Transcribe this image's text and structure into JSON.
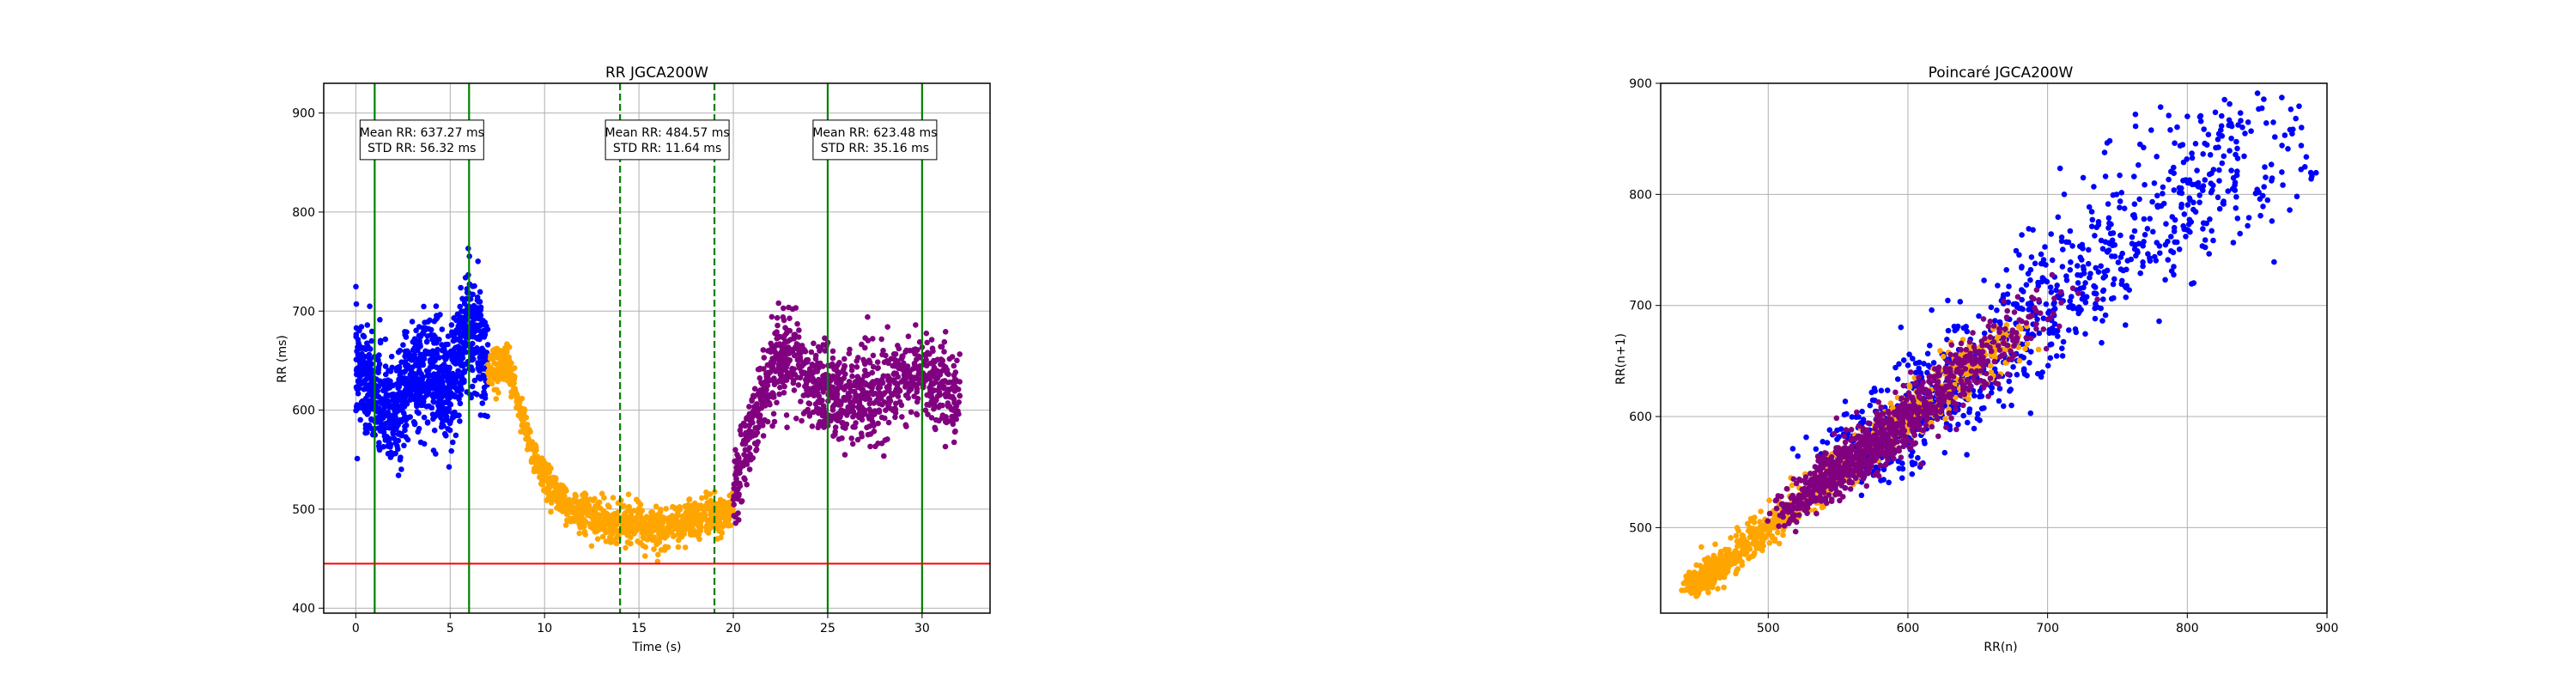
{
  "chart_data": [
    {
      "type": "scatter",
      "title": "RR JGCA200W",
      "xlabel": "Time (s)",
      "ylabel": "RR (ms)",
      "xlim": [
        -1.7,
        33.6
      ],
      "ylim": [
        395,
        930
      ],
      "xticks": [
        0,
        5,
        10,
        15,
        20,
        25,
        30
      ],
      "yticks": [
        400,
        500,
        600,
        700,
        800,
        900
      ],
      "grid": true,
      "series": [
        {
          "color": "#0000ff",
          "x_range": [
            0,
            7
          ],
          "segments": [
            [
              0,
              650
            ],
            [
              1,
              610
            ],
            [
              2,
              590
            ],
            [
              3,
              630
            ],
            [
              4,
              640
            ],
            [
              5,
              620
            ],
            [
              6,
              690
            ],
            [
              7,
              650
            ]
          ],
          "spread": 50
        },
        {
          "color": "#ffa500",
          "x_range": [
            7,
            20
          ],
          "segments": [
            [
              7,
              640
            ],
            [
              8,
              650
            ],
            [
              9,
              580
            ],
            [
              10,
              530
            ],
            [
              11,
              505
            ],
            [
              12,
              495
            ],
            [
              14,
              485
            ],
            [
              16,
              480
            ],
            [
              18,
              490
            ],
            [
              20,
              495
            ]
          ],
          "spread": 18
        },
        {
          "color": "#800080",
          "x_range": [
            20,
            32
          ],
          "segments": [
            [
              20,
              520
            ],
            [
              21,
              580
            ],
            [
              22,
              640
            ],
            [
              23,
              660
            ],
            [
              24,
              630
            ],
            [
              26,
              610
            ],
            [
              28,
              620
            ],
            [
              30,
              640
            ],
            [
              32,
              610
            ]
          ],
          "spread": 40
        }
      ],
      "vlines": [
        {
          "x": 1,
          "color": "#008000",
          "style": "solid"
        },
        {
          "x": 6,
          "color": "#008000",
          "style": "solid"
        },
        {
          "x": 14,
          "color": "#008000",
          "style": "dashed"
        },
        {
          "x": 19,
          "color": "#008000",
          "style": "dashed"
        },
        {
          "x": 25,
          "color": "#008000",
          "style": "solid"
        },
        {
          "x": 30,
          "color": "#008000",
          "style": "solid"
        }
      ],
      "hline": {
        "y": 445,
        "color": "#ff0000"
      },
      "annotations": [
        {
          "x": 3.5,
          "y": 872,
          "lines": [
            "Mean RR: 637.27 ms",
            "STD RR: 56.32 ms"
          ]
        },
        {
          "x": 16.5,
          "y": 872,
          "lines": [
            "Mean RR: 484.57 ms",
            "STD RR: 11.64 ms"
          ]
        },
        {
          "x": 27.5,
          "y": 872,
          "lines": [
            "Mean RR: 623.48 ms",
            "STD RR: 35.16 ms"
          ]
        }
      ]
    },
    {
      "type": "scatter",
      "title": "Poincaré JGCA200W",
      "xlabel": "RR(n)",
      "ylabel": "RR(n+1)",
      "xlim": [
        423,
        900
      ],
      "ylim": [
        423,
        900
      ],
      "xticks": [
        500,
        600,
        700,
        800,
        900
      ],
      "yticks": [
        500,
        600,
        700,
        800,
        900
      ],
      "grid": true,
      "series": [
        {
          "color": "#ffa500",
          "center": [
            510,
            505
          ],
          "range": [
            445,
            680
          ],
          "spread": 12
        },
        {
          "color": "#800080",
          "center": [
            610,
            610
          ],
          "range": [
            470,
            720
          ],
          "spread": 14
        },
        {
          "color": "#0000ff",
          "center": [
            640,
            640
          ],
          "range": [
            540,
            880
          ],
          "spread": 25
        }
      ]
    }
  ]
}
